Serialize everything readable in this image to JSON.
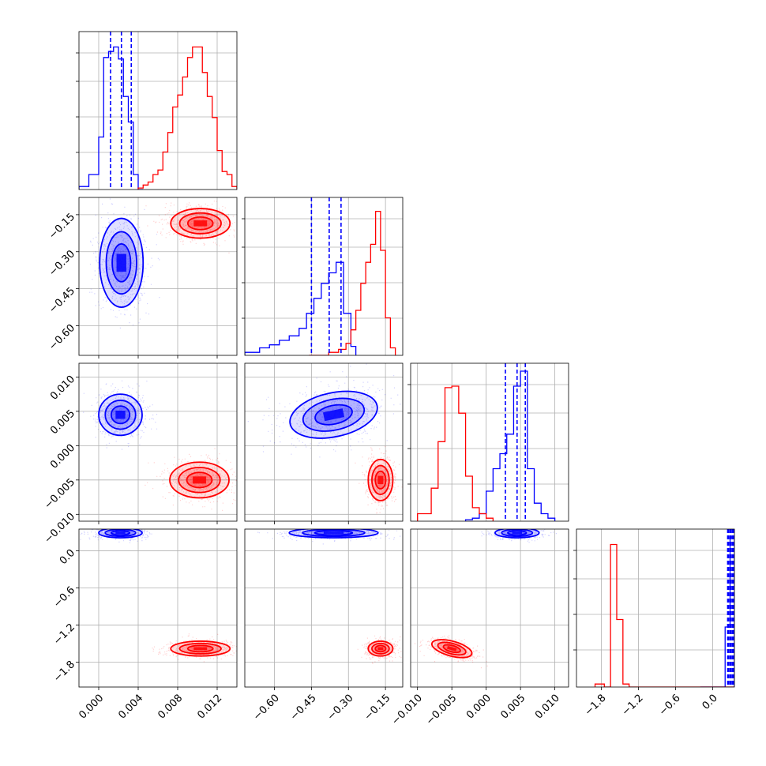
{
  "chart_data": {
    "type": "corner",
    "grid": true,
    "colors": {
      "series_a": "#0000ff",
      "series_b": "#ff0000"
    },
    "series": [
      {
        "color": "#0000ff",
        "quantiles": {
          "p1": [
            0.0012,
            0.0023,
            0.0033
          ],
          "p2": [
            -0.45,
            -0.378,
            -0.33
          ],
          "p3": [
            0.0028,
            0.0045,
            0.0057
          ],
          "p4": [
            0.25,
            0.29,
            0.33
          ]
        }
      },
      {
        "color": "#ff0000"
      }
    ],
    "params": [
      {
        "id": "p1",
        "lim": [
          -0.002,
          0.014
        ],
        "ticks": [
          0.0,
          0.004,
          0.008,
          0.012
        ],
        "tick_labels": [
          "0.000",
          "0.004",
          "0.008",
          "0.012"
        ]
      },
      {
        "id": "p2",
        "lim": [
          -0.72,
          -0.08
        ],
        "ticks": [
          -0.6,
          -0.45,
          -0.3,
          -0.15
        ],
        "tick_labels": [
          "−0.60",
          "−0.45",
          "−0.30",
          "−0.15"
        ]
      },
      {
        "id": "p3",
        "lim": [
          -0.011,
          0.012
        ],
        "ticks": [
          -0.01,
          -0.005,
          0.0,
          0.005,
          0.01
        ],
        "tick_labels": [
          "−0.010",
          "−0.005",
          "0.000",
          "0.005",
          "0.010"
        ]
      },
      {
        "id": "p4",
        "lim": [
          -2.2,
          0.35
        ],
        "ticks": [
          -1.8,
          -1.2,
          -0.6,
          0.0
        ],
        "tick_labels": [
          "−1.8",
          "−1.2",
          "−0.6",
          "0.0"
        ]
      }
    ],
    "histograms": [
      {
        "param": "p1",
        "blue": {
          "edges": [
            -0.002,
            -0.001,
            0.0,
            0.0005,
            0.001,
            0.0015,
            0.002,
            0.0025,
            0.003,
            0.0035,
            0.004,
            0.0045
          ],
          "counts": [
            0.02,
            0.1,
            0.35,
            0.88,
            0.92,
            0.95,
            0.87,
            0.62,
            0.45,
            0.1,
            0.0
          ]
        },
        "red": {
          "edges": [
            0.004,
            0.0045,
            0.005,
            0.0055,
            0.006,
            0.0065,
            0.007,
            0.0075,
            0.008,
            0.0085,
            0.009,
            0.0095,
            0.01,
            0.0105,
            0.011,
            0.0115,
            0.012,
            0.0125,
            0.013,
            0.0135,
            0.014
          ],
          "counts": [
            0.01,
            0.03,
            0.05,
            0.1,
            0.13,
            0.25,
            0.38,
            0.55,
            0.63,
            0.75,
            0.88,
            0.95,
            0.95,
            0.78,
            0.62,
            0.48,
            0.26,
            0.12,
            0.1,
            0.02
          ]
        }
      },
      {
        "param": "p2",
        "blue": {
          "edges": [
            -0.72,
            -0.66,
            -0.62,
            -0.58,
            -0.54,
            -0.5,
            -0.47,
            -0.44,
            -0.41,
            -0.38,
            -0.35,
            -0.32,
            -0.29,
            -0.27
          ],
          "counts": [
            0.02,
            0.05,
            0.07,
            0.1,
            0.13,
            0.18,
            0.28,
            0.38,
            0.48,
            0.55,
            0.62,
            0.28,
            0.06
          ]
        },
        "red": {
          "edges": [
            -0.46,
            -0.38,
            -0.34,
            -0.31,
            -0.29,
            -0.27,
            -0.25,
            -0.23,
            -0.21,
            -0.19,
            -0.17,
            -0.15,
            -0.13,
            -0.11
          ],
          "counts": [
            0.0,
            0.02,
            0.04,
            0.08,
            0.17,
            0.3,
            0.48,
            0.62,
            0.74,
            0.96,
            0.7,
            0.25,
            0.05
          ]
        }
      },
      {
        "param": "p3",
        "blue": {
          "edges": [
            -0.003,
            -0.002,
            -0.001,
            0.0,
            0.001,
            0.002,
            0.003,
            0.004,
            0.005,
            0.006,
            0.007,
            0.008,
            0.009,
            0.01
          ],
          "counts": [
            0.01,
            0.02,
            0.05,
            0.2,
            0.35,
            0.45,
            0.58,
            0.9,
            1.0,
            0.35,
            0.12,
            0.05,
            0.02
          ]
        },
        "red": {
          "edges": [
            -0.01,
            -0.009,
            -0.008,
            -0.007,
            -0.006,
            -0.005,
            -0.004,
            -0.003,
            -0.002,
            -0.001,
            0.0,
            0.001
          ],
          "counts": [
            0.05,
            0.05,
            0.22,
            0.53,
            0.89,
            0.9,
            0.72,
            0.3,
            0.09,
            0.05,
            0.02
          ]
        }
      },
      {
        "param": "p4",
        "blue": {
          "edges": [
            -0.2,
            0.2,
            0.28,
            0.35
          ],
          "counts": [
            0.0,
            0.4,
            1.0
          ]
        },
        "red": {
          "edges": [
            -1.9,
            -1.75,
            -1.65,
            -1.55,
            -1.45,
            -1.35,
            -1.25,
            -1.15,
            0.35
          ],
          "counts": [
            0.02,
            0.0,
            0.95,
            0.45,
            0.02,
            0.0,
            0.0,
            0.0
          ]
        }
      }
    ],
    "panels_2d": [
      {
        "x": "p1",
        "y": "p2",
        "blue": {
          "center": [
            0.0023,
            -0.345
          ],
          "spread": [
            0.0011,
            0.09
          ],
          "rot": 0
        },
        "red": {
          "center": [
            0.0103,
            -0.185
          ],
          "spread": [
            0.0015,
            0.03
          ],
          "rot": 0
        }
      },
      {
        "x": "p1",
        "y": "p3",
        "blue": {
          "center": [
            0.0022,
            0.0045
          ],
          "spread": [
            0.0011,
            0.0015
          ],
          "rot": 0
        },
        "red": {
          "center": [
            0.0102,
            -0.005
          ],
          "spread": [
            0.0015,
            0.0013
          ],
          "rot": 0
        }
      },
      {
        "x": "p2",
        "y": "p3",
        "blue": {
          "center": [
            -0.36,
            0.0045
          ],
          "spread": [
            0.09,
            0.0016
          ],
          "rot": -12
        },
        "red": {
          "center": [
            -0.17,
            -0.005
          ],
          "spread": [
            0.025,
            0.0015
          ],
          "rot": 0
        }
      },
      {
        "x": "p1",
        "y": "p4",
        "blue": {
          "center": [
            0.0022,
            0.29
          ],
          "spread": [
            0.0011,
            0.04
          ],
          "rot": 0
        },
        "red": {
          "center": [
            0.0103,
            -1.58
          ],
          "spread": [
            0.0015,
            0.06
          ],
          "rot": 0
        }
      },
      {
        "x": "p2",
        "y": "p4",
        "blue": {
          "center": [
            -0.36,
            0.29
          ],
          "spread": [
            0.09,
            0.04
          ],
          "rot": 0
        },
        "red": {
          "center": [
            -0.17,
            -1.58
          ],
          "spread": [
            0.025,
            0.06
          ],
          "rot": 0
        }
      },
      {
        "x": "p3",
        "y": "p4",
        "blue": {
          "center": [
            0.0045,
            0.29
          ],
          "spread": [
            0.0016,
            0.04
          ],
          "rot": 0
        },
        "red": {
          "center": [
            -0.005,
            -1.58
          ],
          "spread": [
            0.0015,
            0.06
          ],
          "rot": 15
        }
      }
    ]
  }
}
